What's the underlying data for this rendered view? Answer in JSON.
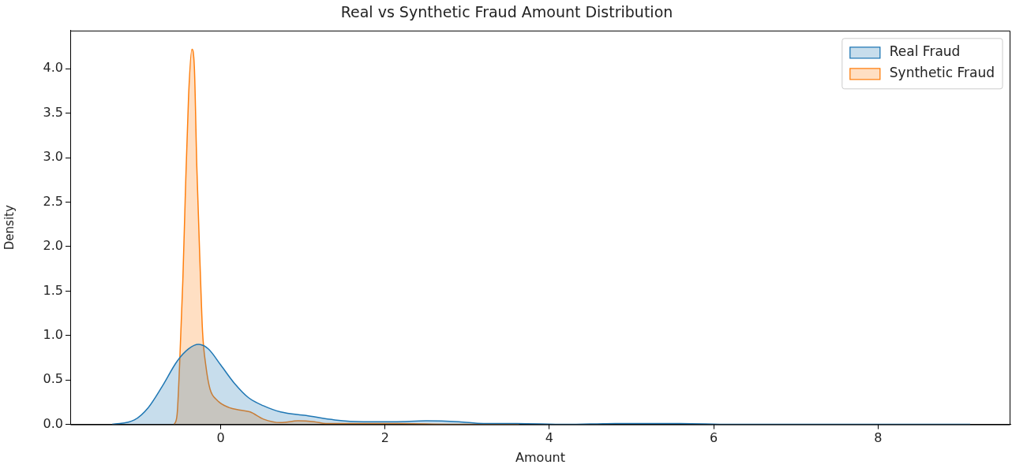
{
  "chart_data": {
    "type": "area",
    "title": "Real vs Synthetic Fraud Amount Distribution",
    "xlabel": "Amount",
    "ylabel": "Density",
    "xlim": [
      -1.83,
      9.61
    ],
    "xticks": [
      0,
      2,
      4,
      6,
      8
    ],
    "ylim": [
      0,
      4.43
    ],
    "yticks": [
      {
        "value": 0,
        "label": "0.0"
      },
      0.5,
      {
        "value": 1,
        "label": "1.0"
      },
      1.5,
      {
        "value": 2,
        "label": "2.0"
      },
      2.5,
      {
        "value": 3,
        "label": "3.0"
      },
      3.5,
      {
        "value": 4,
        "label": "4.0"
      }
    ],
    "grid": false,
    "legend": "top right",
    "line_style": "solid",
    "marker": "none",
    "series": [
      {
        "name": "Real Fraud",
        "color": "#1f77b4",
        "x": [
          -1.32,
          -1.05,
          -0.88,
          -0.71,
          -0.53,
          -0.39,
          -0.27,
          -0.15,
          0,
          0.17,
          0.34,
          0.52,
          0.73,
          1.04,
          1.39,
          1.74,
          2.09,
          2.5,
          2.9,
          3.2,
          3.6,
          4.2,
          4.8,
          5.2,
          5.6,
          6.2,
          7,
          8,
          9.12
        ],
        "values": [
          0,
          0.05,
          0.19,
          0.43,
          0.71,
          0.85,
          0.9,
          0.85,
          0.67,
          0.46,
          0.3,
          0.21,
          0.14,
          0.1,
          0.05,
          0.03,
          0.03,
          0.04,
          0.03,
          0.01,
          0.01,
          0,
          0.01,
          0.01,
          0.01,
          0,
          0,
          0,
          0
        ]
      },
      {
        "name": "Synthetic Fraud",
        "color": "#ff7f0e",
        "x": [
          -0.565,
          -0.53,
          -0.5,
          -0.46,
          -0.43,
          -0.39,
          -0.35,
          -0.32,
          -0.29,
          -0.25,
          -0.22,
          -0.18,
          -0.13,
          -0.04,
          0.1,
          0.24,
          0.36,
          0.52,
          0.73,
          0.94,
          1.14,
          1.28,
          2,
          3,
          3.63
        ],
        "values": [
          0,
          0.11,
          0.66,
          1.62,
          2.58,
          3.7,
          4.22,
          4.02,
          2.9,
          1.78,
          1.04,
          0.66,
          0.4,
          0.27,
          0.19,
          0.16,
          0.14,
          0.06,
          0.02,
          0.04,
          0.03,
          0.01,
          0.01,
          0,
          0
        ]
      }
    ]
  }
}
